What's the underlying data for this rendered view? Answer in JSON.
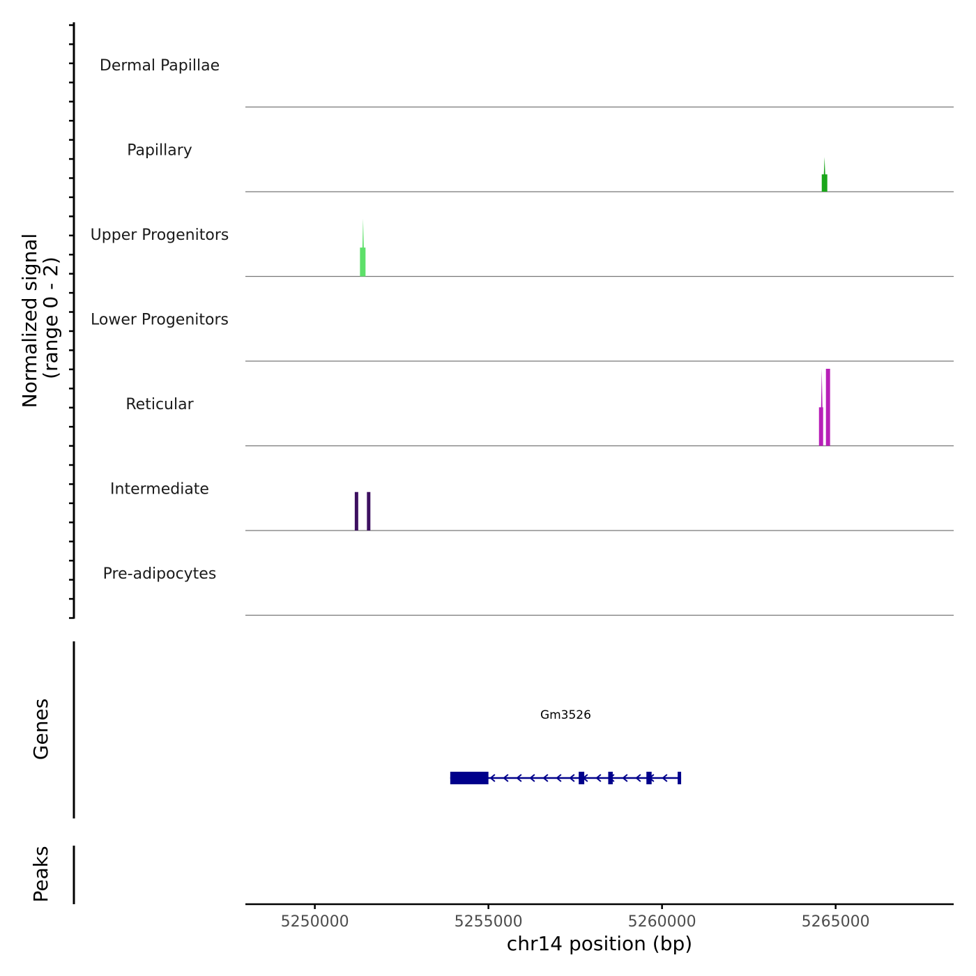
{
  "chart_data": {
    "type": "area",
    "title": "",
    "xlabel": "chr14 position (bp)",
    "ylabel": "Normalized signal",
    "ylabel_sub": "(range 0 - 2)",
    "xlim": [
      5248000,
      5268400
    ],
    "ylim": [
      0,
      2
    ],
    "x_ticks": [
      5250000,
      5255000,
      5260000,
      5265000
    ],
    "x_tick_labels": [
      "5250000",
      "5255000",
      "5260000",
      "5265000"
    ],
    "tracks": [
      {
        "name": "Dermal Papillae",
        "color": "#000000",
        "peaks": []
      },
      {
        "name": "Papillary",
        "color": "#1aa61a",
        "peaks": [
          {
            "start": 5264600,
            "end": 5264760,
            "value": 0.45,
            "apex": 5264680,
            "apex_value": 0.9
          }
        ]
      },
      {
        "name": "Upper Progenitors",
        "color": "#5ee06a",
        "peaks": [
          {
            "start": 5251300,
            "end": 5251460,
            "value": 0.75,
            "apex": 5251390,
            "apex_value": 1.5
          }
        ]
      },
      {
        "name": "Lower Progenitors",
        "color": "#000000",
        "peaks": []
      },
      {
        "name": "Reticular",
        "color": "#b81fb8",
        "peaks": [
          {
            "start": 5264520,
            "end": 5264640,
            "value": 1.0,
            "apex": 5264600,
            "apex_value": 2.0
          },
          {
            "start": 5264720,
            "end": 5264840,
            "value": 2.0,
            "apex": 5264780,
            "apex_value": 2.0
          }
        ]
      },
      {
        "name": "Intermediate",
        "color": "#3d1060",
        "peaks": [
          {
            "start": 5251150,
            "end": 5251250,
            "value": 1.0
          },
          {
            "start": 5251500,
            "end": 5251600,
            "value": 1.0
          }
        ]
      },
      {
        "name": "Pre-adipocytes",
        "color": "#000000",
        "peaks": []
      }
    ],
    "genes_track": {
      "label": "Genes",
      "color": "#00008b",
      "genes": [
        {
          "name": "Gm3526",
          "start": 5253900,
          "end": 5260550,
          "strand": "-",
          "exons": [
            [
              5253900,
              5255000
            ],
            [
              5257600,
              5257760
            ],
            [
              5258450,
              5258580
            ],
            [
              5259550,
              5259700
            ],
            [
              5260450,
              5260550
            ]
          ]
        }
      ]
    },
    "peaks_track": {
      "label": "Peaks",
      "peaks": []
    }
  }
}
